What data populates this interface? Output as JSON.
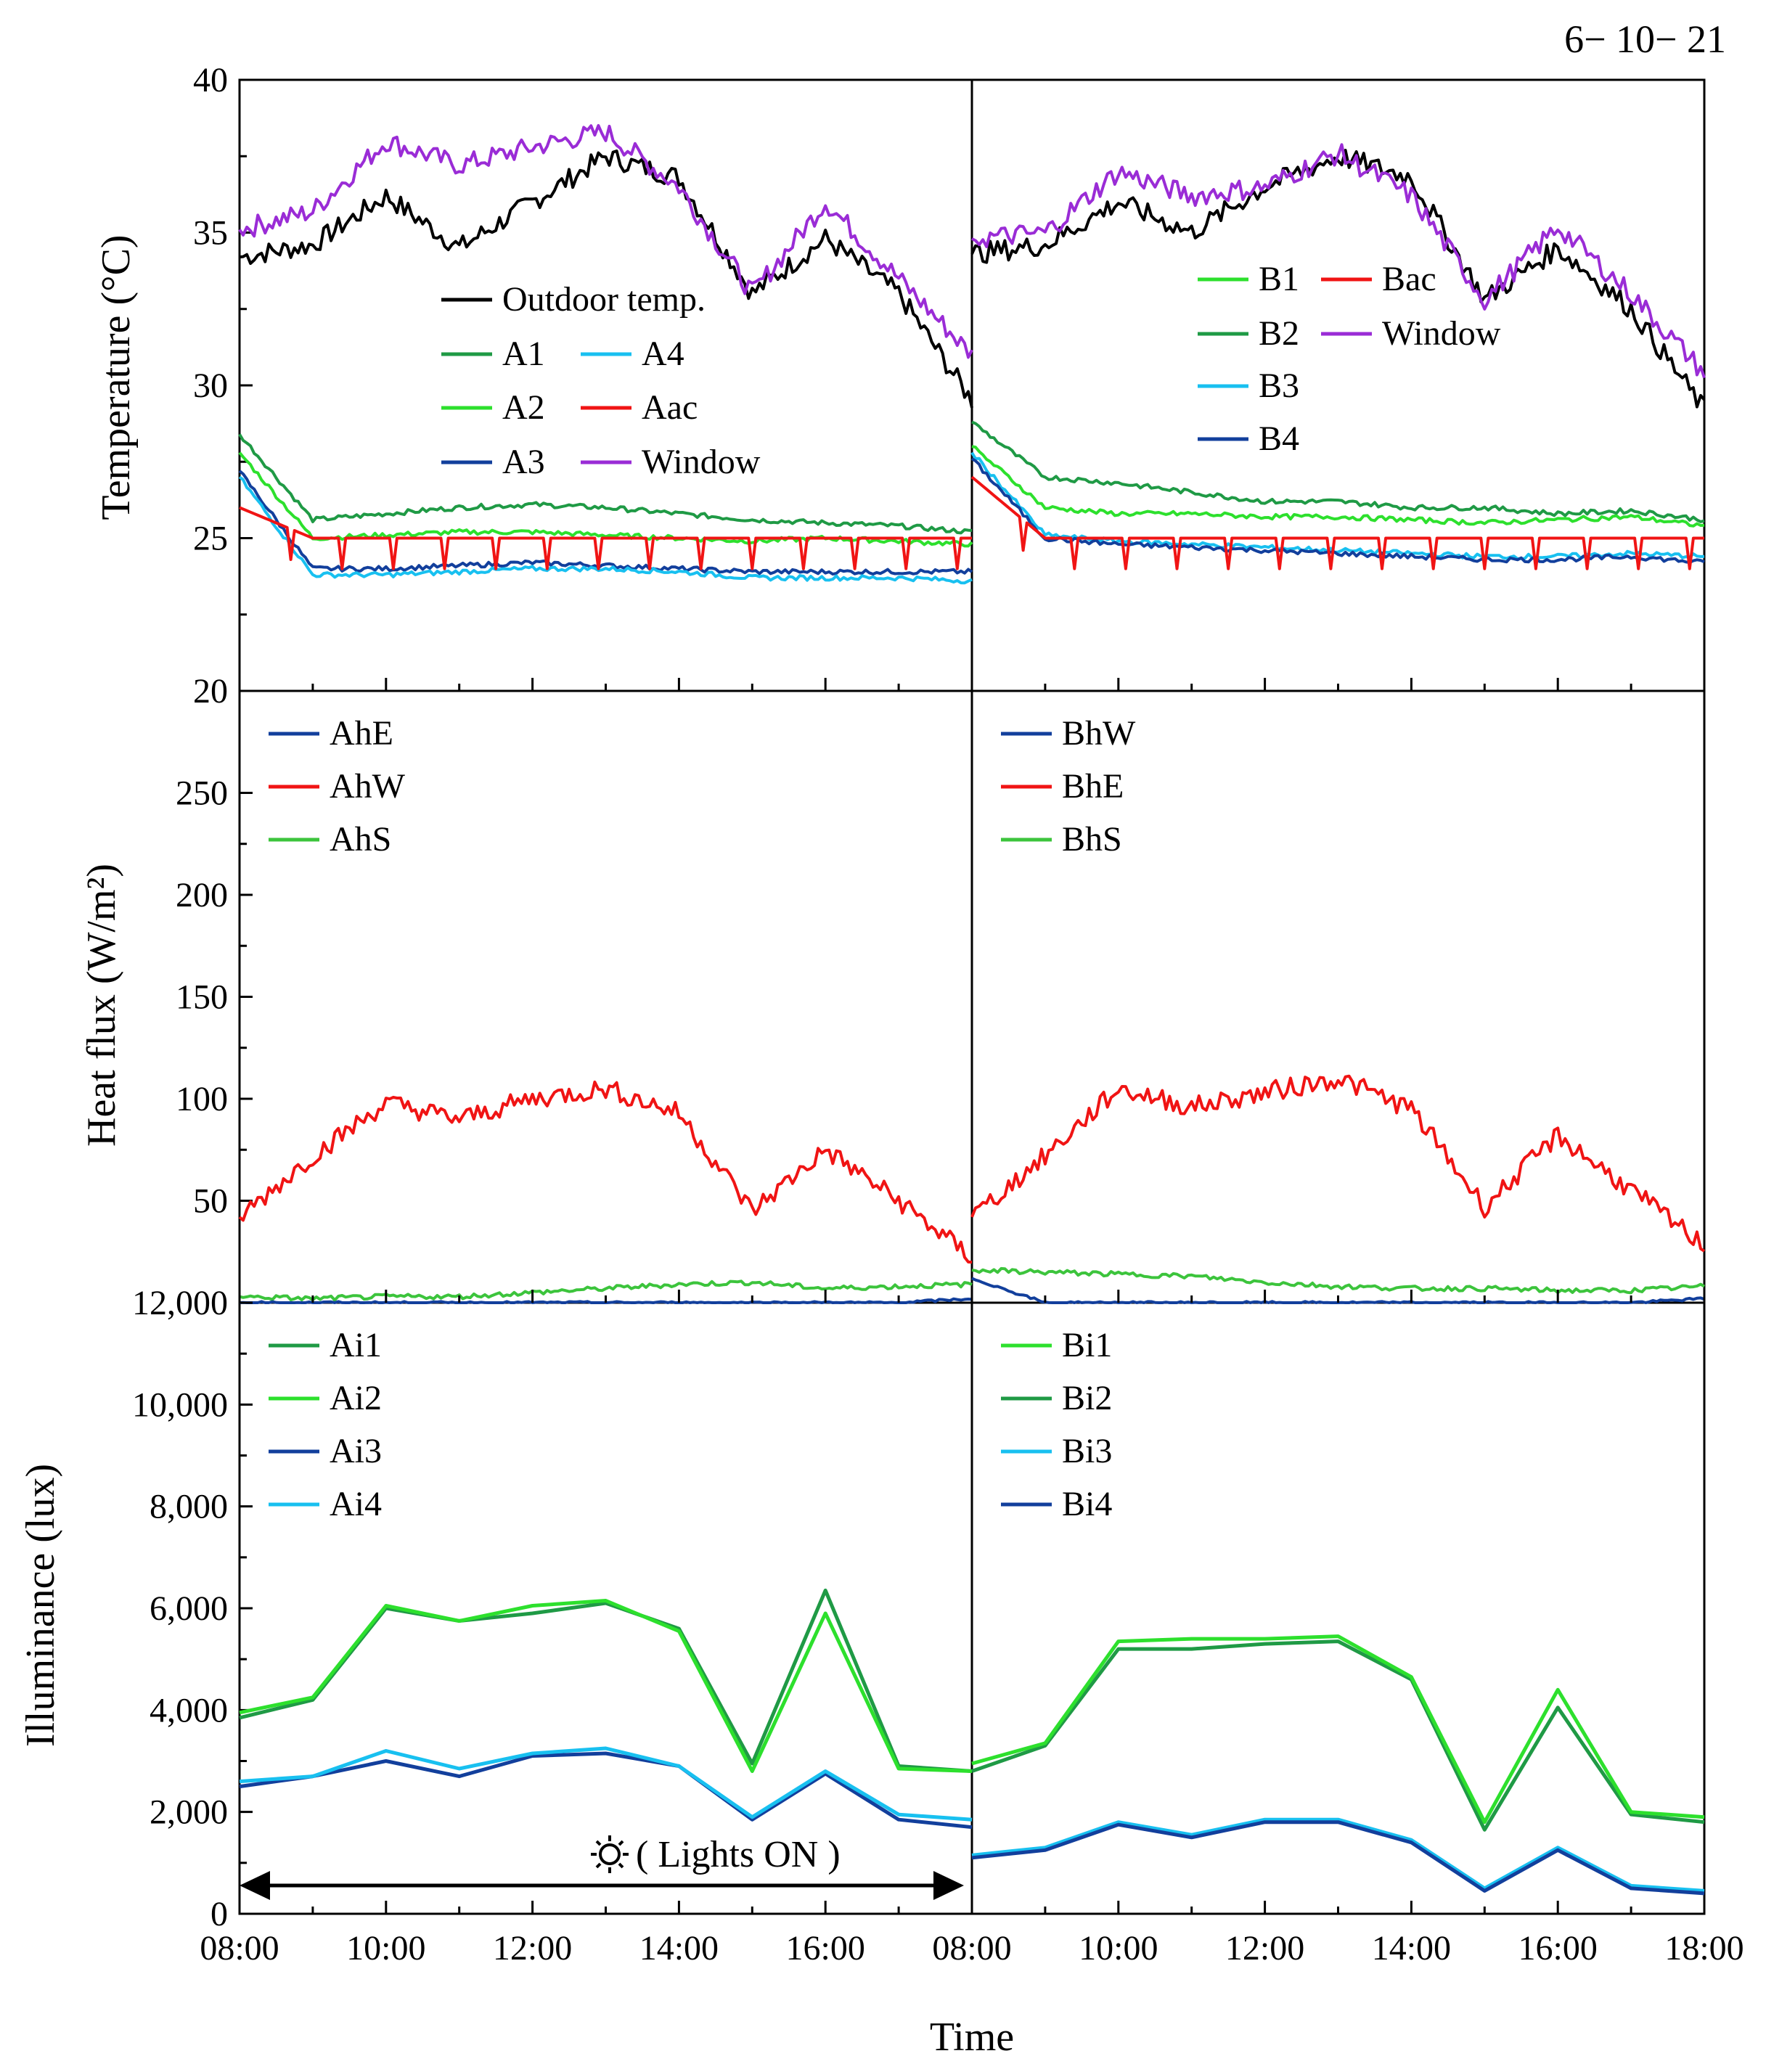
{
  "figure": {
    "date_label": "6− 10− 21",
    "x_axis_label": "Time",
    "x_ticks": [
      "08:00",
      "10:00",
      "12:00",
      "14:00",
      "16:00",
      "08:00",
      "10:00",
      "12:00",
      "14:00",
      "16:00",
      "18:00"
    ],
    "annotation": "( Lights ON )",
    "annotation_icon": "sun-icon",
    "colors": {
      "black": "#000000",
      "dark_green": "#1f9a45",
      "light_green": "#2de02d",
      "dark_blue": "#123f9c",
      "cyan": "#18c0f0",
      "red": "#f01414",
      "purple": "#9a2cd6",
      "mid_green": "#3cc43c"
    }
  },
  "chart_data": [
    {
      "type": "line",
      "panel": "temperature",
      "ylabel": "Temperature (°C)",
      "ylim": [
        20,
        40
      ],
      "y_ticks": [
        "20",
        "25",
        "30",
        "35",
        "40"
      ],
      "x": [
        "08:00",
        "09:00",
        "10:00",
        "11:00",
        "12:00",
        "13:00",
        "14:00",
        "15:00",
        "16:00",
        "17:00",
        "18:00"
      ],
      "left": {
        "legend": [
          "Outdoor temp.",
          "A1",
          "A2",
          "A3",
          "A4",
          "Aac",
          "Window"
        ],
        "series": [
          {
            "name": "Outdoor temp.",
            "color": "black",
            "values": [
              34.2,
              34.6,
              36.2,
              34.5,
              36.0,
              37.5,
              36.8,
              33.0,
              34.8,
              33.0,
              29.5
            ]
          },
          {
            "name": "Window",
            "color": "purple",
            "values": [
              35.1,
              35.7,
              38.0,
              37.2,
              37.8,
              38.3,
              36.5,
              33.0,
              36.0,
              33.5,
              31.0
            ]
          },
          {
            "name": "A1",
            "color": "dark_green",
            "values": [
              28.4,
              25.6,
              25.8,
              26.0,
              26.1,
              26.0,
              25.8,
              25.6,
              25.5,
              25.4,
              25.2
            ]
          },
          {
            "name": "A2",
            "color": "light_green",
            "values": [
              27.8,
              25.0,
              25.1,
              25.2,
              25.2,
              25.1,
              25.0,
              24.9,
              25.0,
              24.9,
              24.8
            ]
          },
          {
            "name": "A3",
            "color": "dark_blue",
            "values": [
              27.2,
              24.0,
              24.0,
              24.1,
              24.2,
              24.1,
              24.0,
              23.9,
              23.9,
              23.9,
              23.9
            ]
          },
          {
            "name": "A4",
            "color": "cyan",
            "values": [
              27.0,
              23.8,
              23.8,
              23.9,
              24.0,
              24.0,
              23.9,
              23.7,
              23.7,
              23.7,
              23.6
            ]
          },
          {
            "name": "Aac",
            "color": "red",
            "values": [
              26.0,
              25.0,
              25.0,
              25.0,
              25.0,
              25.0,
              25.0,
              25.0,
              25.0,
              25.0,
              25.0
            ]
          }
        ]
      },
      "right": {
        "legend": [
          "B1",
          "B2",
          "B3",
          "B4",
          "Bac",
          "Window"
        ],
        "series": [
          {
            "name": "Outdoor temp.",
            "color": "black",
            "values": [
              34.3,
              34.6,
              36.0,
              35.0,
              36.5,
              37.5,
              36.8,
              32.8,
              34.5,
              32.5,
              29.2
            ]
          },
          {
            "name": "Window",
            "color": "purple",
            "values": [
              34.8,
              35.0,
              37.0,
              36.2,
              36.5,
              37.6,
              36.2,
              32.8,
              35.2,
              33.0,
              30.4
            ]
          },
          {
            "name": "B2",
            "color": "dark_green",
            "values": [
              28.8,
              27.0,
              26.8,
              26.5,
              26.2,
              26.2,
              26.0,
              26.0,
              25.8,
              25.9,
              25.6
            ]
          },
          {
            "name": "B1",
            "color": "light_green",
            "values": [
              28.0,
              26.0,
              25.8,
              25.8,
              25.7,
              25.7,
              25.6,
              25.5,
              25.6,
              25.7,
              25.4
            ]
          },
          {
            "name": "B3",
            "color": "cyan",
            "values": [
              27.8,
              25.1,
              24.9,
              24.8,
              24.7,
              24.6,
              24.5,
              24.4,
              24.4,
              24.5,
              24.4
            ]
          },
          {
            "name": "B4",
            "color": "dark_blue",
            "values": [
              27.6,
              25.0,
              24.8,
              24.7,
              24.6,
              24.5,
              24.4,
              24.3,
              24.3,
              24.4,
              24.2
            ]
          },
          {
            "name": "Bac",
            "color": "red",
            "values": [
              27.0,
              25.0,
              25.0,
              25.0,
              25.0,
              25.0,
              25.0,
              25.0,
              25.0,
              25.0,
              25.0
            ]
          }
        ]
      }
    },
    {
      "type": "line",
      "panel": "heat_flux",
      "ylabel": "Heat flux (W/m²)",
      "ylim": [
        0,
        300
      ],
      "y_ticks": [
        "50",
        "100",
        "150",
        "200",
        "250"
      ],
      "x": [
        "08:00",
        "09:00",
        "10:00",
        "11:00",
        "12:00",
        "13:00",
        "14:00",
        "15:00",
        "16:00",
        "17:00",
        "18:00"
      ],
      "left": {
        "legend": [
          "AhE",
          "AhW",
          "AhS"
        ],
        "series": [
          {
            "name": "AhW",
            "color": "red",
            "values": [
              42,
              72,
              98,
              90,
              100,
              105,
              93,
              45,
              75,
              50,
              22
            ]
          },
          {
            "name": "AhS",
            "color": "mid_green",
            "values": [
              3,
              2,
              3,
              3,
              5,
              7,
              9,
              10,
              7,
              8,
              9
            ]
          },
          {
            "name": "AhE",
            "color": "dark_blue",
            "values": [
              0,
              0,
              0,
              0,
              0,
              0,
              0,
              0,
              0,
              0,
              2
            ]
          }
        ]
      },
      "right": {
        "legend": [
          "BhW",
          "BhE",
          "BhS"
        ],
        "series": [
          {
            "name": "BhE",
            "color": "red",
            "values": [
              42,
              72,
              105,
              96,
              103,
              110,
              95,
              47,
              82,
              55,
              28
            ]
          },
          {
            "name": "BhS",
            "color": "mid_green",
            "values": [
              16,
              15,
              14,
              13,
              10,
              8,
              7,
              7,
              6,
              6,
              8
            ]
          },
          {
            "name": "BhW",
            "color": "dark_blue",
            "values": [
              12,
              0,
              0,
              0,
              0,
              0,
              0,
              0,
              0,
              0,
              2
            ]
          }
        ]
      }
    },
    {
      "type": "line",
      "panel": "illuminance",
      "ylabel": "Illuminance (lux)",
      "ylim": [
        0,
        12000
      ],
      "y_ticks": [
        "0",
        "2,000",
        "4,000",
        "6,000",
        "8,000",
        "10,000",
        "12,000"
      ],
      "x": [
        "08:00",
        "09:00",
        "10:00",
        "11:00",
        "12:00",
        "13:00",
        "14:00",
        "15:00",
        "16:00",
        "17:00",
        "18:00"
      ],
      "left": {
        "legend": [
          "Ai1",
          "Ai2",
          "Ai3",
          "Ai4"
        ],
        "series": [
          {
            "name": "Ai1",
            "color": "dark_green",
            "values": [
              3850,
              4200,
              6000,
              5750,
              5900,
              6100,
              5600,
              2950,
              6350,
              2900,
              2800
            ]
          },
          {
            "name": "Ai2",
            "color": "light_green",
            "values": [
              3950,
              4250,
              6050,
              5750,
              6050,
              6150,
              5550,
              2800,
              5900,
              2850,
              2800
            ]
          },
          {
            "name": "Ai3",
            "color": "dark_blue",
            "values": [
              2500,
              2700,
              3000,
              2700,
              3100,
              3150,
              2900,
              1850,
              2750,
              1850,
              1700
            ]
          },
          {
            "name": "Ai4",
            "color": "cyan",
            "values": [
              2600,
              2700,
              3200,
              2850,
              3150,
              3250,
              2900,
              1900,
              2800,
              1950,
              1850
            ]
          }
        ]
      },
      "right": {
        "legend": [
          "Bi1",
          "Bi2",
          "Bi3",
          "Bi4"
        ],
        "series": [
          {
            "name": "Bi2",
            "color": "dark_green",
            "values": [
              2800,
              3300,
              5200,
              5200,
              5300,
              5350,
              4600,
              1650,
              4050,
              1950,
              1800
            ]
          },
          {
            "name": "Bi1",
            "color": "light_green",
            "values": [
              2950,
              3350,
              5350,
              5400,
              5400,
              5450,
              4650,
              1800,
              4400,
              2000,
              1900
            ]
          },
          {
            "name": "Bi3",
            "color": "cyan",
            "values": [
              1150,
              1300,
              1800,
              1550,
              1850,
              1850,
              1450,
              500,
              1300,
              550,
              450
            ]
          },
          {
            "name": "Bi4",
            "color": "dark_blue",
            "values": [
              1100,
              1250,
              1750,
              1500,
              1800,
              1800,
              1400,
              450,
              1250,
              500,
              400
            ]
          }
        ]
      }
    }
  ]
}
